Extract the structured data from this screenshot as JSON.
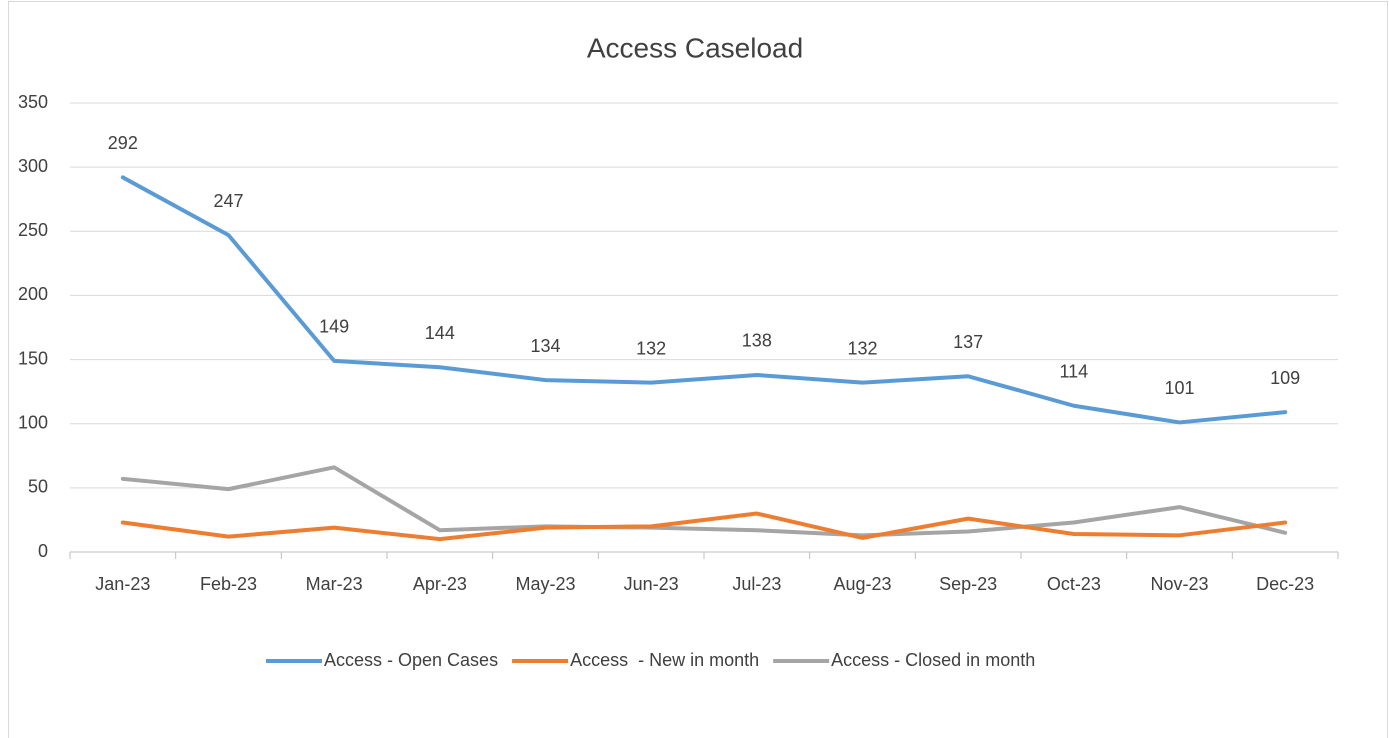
{
  "chart_data": {
    "type": "line",
    "title": "Access Caseload",
    "categories": [
      "Jan-23",
      "Feb-23",
      "Mar-23",
      "Apr-23",
      "May-23",
      "Jun-23",
      "Jul-23",
      "Aug-23",
      "Sep-23",
      "Oct-23",
      "Nov-23",
      "Dec-23"
    ],
    "series": [
      {
        "name": "Access - Open Cases",
        "color": "#5b9bd5",
        "values": [
          292,
          247,
          149,
          144,
          134,
          132,
          138,
          132,
          137,
          114,
          101,
          109
        ],
        "data_labels": true
      },
      {
        "name": "Access  - New in month",
        "color": "#ed7d31",
        "values": [
          23,
          12,
          19,
          10,
          19,
          20,
          30,
          11,
          26,
          14,
          13,
          23
        ]
      },
      {
        "name": "Access - Closed in month",
        "color": "#a5a5a5",
        "values": [
          57,
          49,
          66,
          17,
          20,
          19,
          17,
          13,
          16,
          23,
          35,
          15
        ]
      }
    ],
    "ylim": [
      0,
      350
    ],
    "yticks": [
      0,
      50,
      100,
      150,
      200,
      250,
      300,
      350
    ],
    "grid": true,
    "legend": "bottom"
  }
}
